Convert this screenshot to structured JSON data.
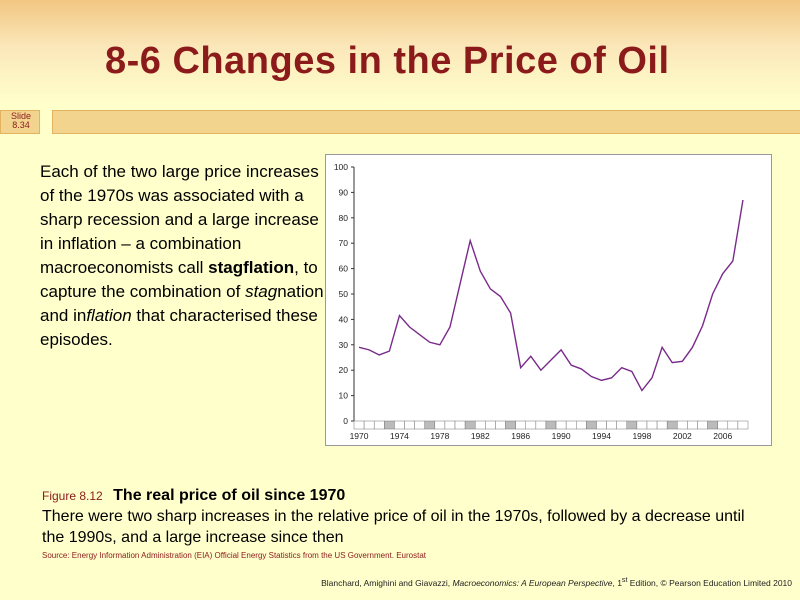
{
  "slide": {
    "title": "8-6  Changes in the Price of Oil",
    "slide_label_top": "Slide",
    "slide_label_bottom": "8.34"
  },
  "body": {
    "p1": "Each of the two large price increases of the 1970s was associated with a sharp recession and a large increase in inflation – a combination macroeconomists call ",
    "stagflation": "stagflation",
    "p2": ", to capture the combination of ",
    "stag_prefix": "stag",
    "p3": "nation and in",
    "flation": "flation",
    "p4": " that characterised these episodes."
  },
  "caption": {
    "figure_number": "Figure 8.12",
    "figure_title": "The real price of oil since 1970",
    "description": "There were two sharp increases in the relative price of oil in the 1970s, followed by a decrease until the 1990s, and a large increase since then",
    "source": "Source: Energy Information Administration (EIA) Official Energy Statistics from the US Government. Eurostat"
  },
  "footer": {
    "authors": "Blanchard, Amighini and Giavazzi, ",
    "book": "Macroeconomics: A European Perspective",
    "edition_pre": ", 1",
    "edition_sup": "st",
    "edition_post": " Edition, © Pearson Education Limited 2010"
  },
  "colors": {
    "title": "#8b1a1a",
    "line": "#7a2a8a",
    "background": "#ffffcc"
  },
  "chart_data": {
    "type": "line",
    "title": "",
    "xlabel": "",
    "ylabel": "",
    "ylim": [
      0,
      100
    ],
    "yticks": [
      0,
      10,
      20,
      30,
      40,
      50,
      60,
      70,
      80,
      90,
      100
    ],
    "xlim": [
      1970,
      2009
    ],
    "xticks": [
      1970,
      1974,
      1978,
      1982,
      1986,
      1990,
      1994,
      1998,
      2002,
      2006
    ],
    "series": [
      {
        "name": "Real price of oil",
        "x": [
          1970,
          1971,
          1972,
          1973,
          1974,
          1975,
          1976,
          1977,
          1978,
          1979,
          1980,
          1981,
          1982,
          1983,
          1984,
          1985,
          1986,
          1987,
          1988,
          1989,
          1990,
          1991,
          1992,
          1993,
          1994,
          1995,
          1996,
          1997,
          1998,
          1999,
          2000,
          2001,
          2002,
          2003,
          2004,
          2005,
          2006,
          2007,
          2008
        ],
        "values": [
          29,
          28,
          26,
          27.5,
          41.5,
          37,
          34,
          31,
          30,
          37,
          54,
          71,
          59,
          52,
          49,
          42.5,
          21,
          25.5,
          20,
          24,
          28,
          22,
          20.5,
          17.5,
          16,
          17,
          21,
          19.5,
          12,
          17,
          29,
          23,
          23.5,
          29,
          37.5,
          50,
          58,
          63,
          87
        ]
      }
    ]
  }
}
